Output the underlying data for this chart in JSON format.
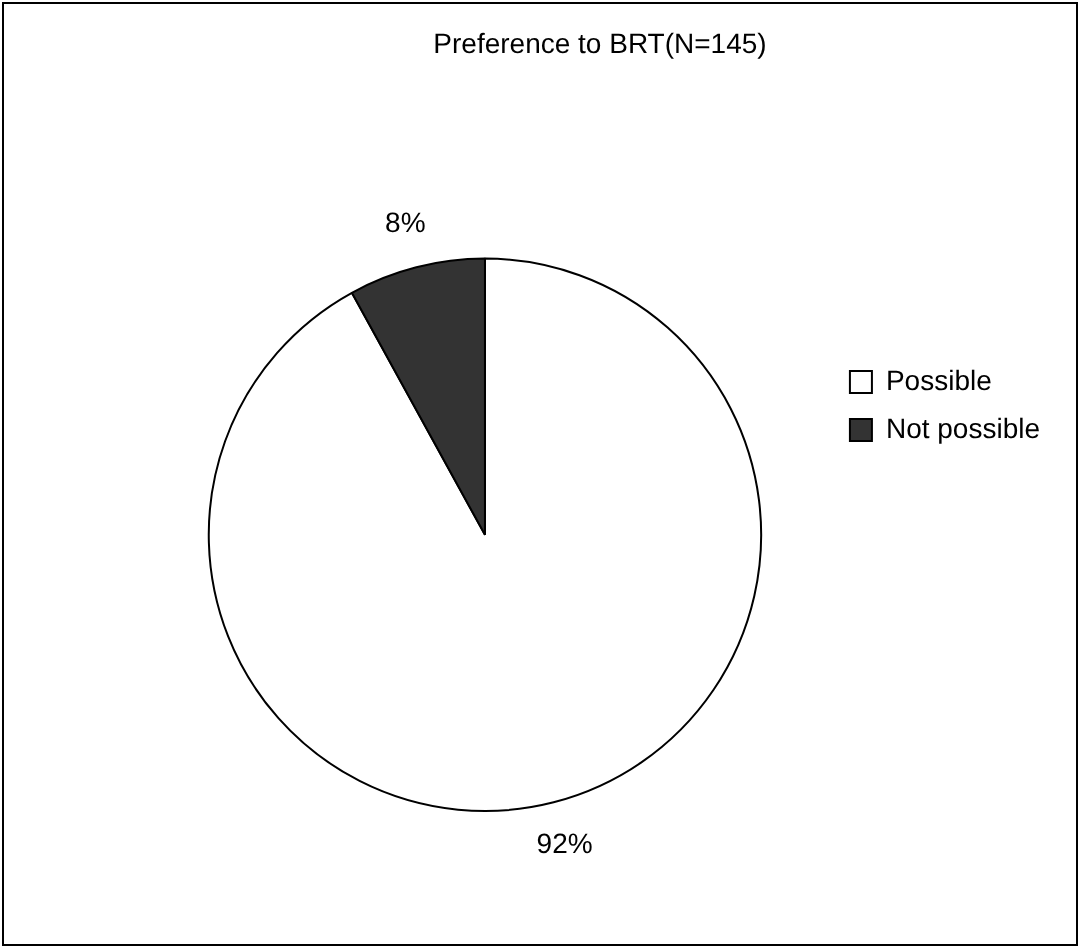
{
  "chart_data": {
    "type": "pie",
    "title": "Preference to BRT(N=145)",
    "categories": [
      "Possible",
      "Not possible"
    ],
    "values": [
      92,
      8
    ],
    "value_labels": [
      "92%",
      "8%"
    ],
    "colors": [
      "#ffffff",
      "#333333"
    ],
    "legend": "right"
  }
}
